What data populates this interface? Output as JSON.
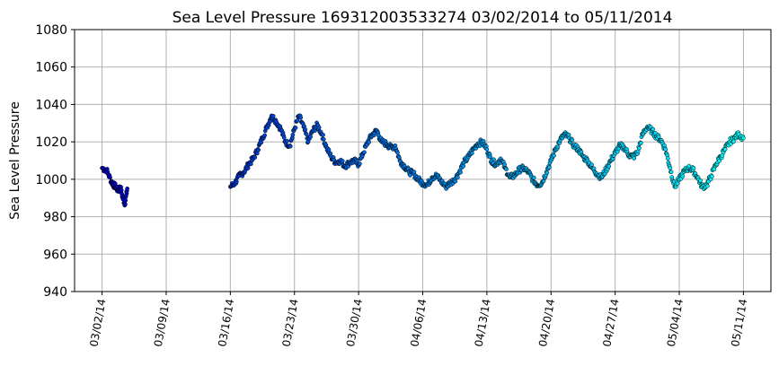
{
  "chart_data": {
    "type": "scatter",
    "title": "Sea Level Pressure 169312003533274  03/02/2014 to 05/11/2014",
    "xlabel": "",
    "ylabel": "Sea Level Pressure",
    "ylim": [
      940,
      1080
    ],
    "xlim": [
      "2014-02-27",
      "2014-05-14"
    ],
    "grid": true,
    "marker_edge_color": "#000000",
    "color_start": "#0000cd",
    "color_end": "#00ffff",
    "y_ticks": [
      940,
      960,
      980,
      1000,
      1020,
      1040,
      1060,
      1080
    ],
    "x_ticks": [
      {
        "date": "2014-03-02",
        "label": "03/02/14"
      },
      {
        "date": "2014-03-09",
        "label": "03/09/14"
      },
      {
        "date": "2014-03-16",
        "label": "03/16/14"
      },
      {
        "date": "2014-03-23",
        "label": "03/23/14"
      },
      {
        "date": "2014-03-30",
        "label": "03/30/14"
      },
      {
        "date": "2014-04-06",
        "label": "04/06/14"
      },
      {
        "date": "2014-04-13",
        "label": "04/13/14"
      },
      {
        "date": "2014-04-20",
        "label": "04/20/14"
      },
      {
        "date": "2014-04-27",
        "label": "04/27/14"
      },
      {
        "date": "2014-05-04",
        "label": "05/04/14"
      },
      {
        "date": "2014-05-11",
        "label": "05/11/14"
      }
    ],
    "series": [
      {
        "points": [
          [
            "2014-03-02",
            1006
          ],
          [
            "2014-03-02 12:00",
            1005
          ],
          [
            "2014-03-03",
            999
          ],
          [
            "2014-03-03 06:00",
            997
          ],
          [
            "2014-03-03 12:00",
            996
          ],
          [
            "2014-03-03 18:00",
            994
          ],
          [
            "2014-03-04",
            996
          ],
          [
            "2014-03-04 06:00",
            990
          ],
          [
            "2014-03-04 12:00",
            987
          ],
          [
            "2014-03-04 18:00",
            995
          ],
          [
            "2014-03-16",
            996
          ],
          [
            "2014-03-16 12:00",
            998
          ],
          [
            "2014-03-17",
            1002
          ],
          [
            "2014-03-17 12:00",
            1004
          ],
          [
            "2014-03-18",
            1008
          ],
          [
            "2014-03-18 12:00",
            1011
          ],
          [
            "2014-03-19",
            1016
          ],
          [
            "2014-03-19 12:00",
            1022
          ],
          [
            "2014-03-20",
            1028
          ],
          [
            "2014-03-20 12:00",
            1034
          ],
          [
            "2014-03-21",
            1031
          ],
          [
            "2014-03-21 12:00",
            1027
          ],
          [
            "2014-03-22",
            1020
          ],
          [
            "2014-03-22 12:00",
            1018
          ],
          [
            "2014-03-23",
            1027
          ],
          [
            "2014-03-23 12:00",
            1034
          ],
          [
            "2014-03-24",
            1028
          ],
          [
            "2014-03-24 12:00",
            1020
          ],
          [
            "2014-03-25",
            1026
          ],
          [
            "2014-03-25 12:00",
            1029
          ],
          [
            "2014-03-26",
            1024
          ],
          [
            "2014-03-26 12:00",
            1017
          ],
          [
            "2014-03-27",
            1012
          ],
          [
            "2014-03-27 12:00",
            1009
          ],
          [
            "2014-03-28",
            1010
          ],
          [
            "2014-03-28 12:00",
            1007
          ],
          [
            "2014-03-29",
            1009
          ],
          [
            "2014-03-29 12:00",
            1010
          ],
          [
            "2014-03-30",
            1008
          ],
          [
            "2014-03-30 12:00",
            1014
          ],
          [
            "2014-03-31",
            1020
          ],
          [
            "2014-03-31 12:00",
            1024
          ],
          [
            "2014-04-01",
            1026
          ],
          [
            "2014-04-01 12:00",
            1020
          ],
          [
            "2014-04-02",
            1019
          ],
          [
            "2014-04-02 12:00",
            1017
          ],
          [
            "2014-04-03",
            1018
          ],
          [
            "2014-04-03 12:00",
            1010
          ],
          [
            "2014-04-04",
            1007
          ],
          [
            "2014-04-04 12:00",
            1004
          ],
          [
            "2014-04-05",
            1003
          ],
          [
            "2014-04-05 12:00",
            1000
          ],
          [
            "2014-04-06",
            998
          ],
          [
            "2014-04-06 12:00",
            997
          ],
          [
            "2014-04-07",
            1001
          ],
          [
            "2014-04-07 12:00",
            1002
          ],
          [
            "2014-04-08",
            999
          ],
          [
            "2014-04-08 12:00",
            996
          ],
          [
            "2014-04-09",
            998
          ],
          [
            "2014-04-09 12:00",
            1000
          ],
          [
            "2014-04-10",
            1004
          ],
          [
            "2014-04-10 12:00",
            1009
          ],
          [
            "2014-04-11",
            1012
          ],
          [
            "2014-04-11 12:00",
            1016
          ],
          [
            "2014-04-12",
            1019
          ],
          [
            "2014-04-12 12:00",
            1020
          ],
          [
            "2014-04-13",
            1016
          ],
          [
            "2014-04-13 12:00",
            1010
          ],
          [
            "2014-04-14",
            1008
          ],
          [
            "2014-04-14 12:00",
            1011
          ],
          [
            "2014-04-15",
            1006
          ],
          [
            "2014-04-15 12:00",
            1001
          ],
          [
            "2014-04-16",
            1002
          ],
          [
            "2014-04-16 12:00",
            1005
          ],
          [
            "2014-04-17",
            1006
          ],
          [
            "2014-04-17 12:00",
            1004
          ],
          [
            "2014-04-18",
            1000
          ],
          [
            "2014-04-18 12:00",
            997
          ],
          [
            "2014-04-19",
            998
          ],
          [
            "2014-04-19 12:00",
            1004
          ],
          [
            "2014-04-20",
            1010
          ],
          [
            "2014-04-20 12:00",
            1016
          ],
          [
            "2014-04-21",
            1021
          ],
          [
            "2014-04-21 12:00",
            1024
          ],
          [
            "2014-04-22",
            1022
          ],
          [
            "2014-04-22 12:00",
            1018
          ],
          [
            "2014-04-23",
            1016
          ],
          [
            "2014-04-23 12:00",
            1012
          ],
          [
            "2014-04-24",
            1010
          ],
          [
            "2014-04-24 12:00",
            1006
          ],
          [
            "2014-04-25",
            1003
          ],
          [
            "2014-04-25 12:00",
            1001
          ],
          [
            "2014-04-26",
            1005
          ],
          [
            "2014-04-26 12:00",
            1010
          ],
          [
            "2014-04-27",
            1014
          ],
          [
            "2014-04-27 12:00",
            1018
          ],
          [
            "2014-04-28",
            1017
          ],
          [
            "2014-04-28 12:00",
            1013
          ],
          [
            "2014-04-29",
            1012
          ],
          [
            "2014-04-29 12:00",
            1015
          ],
          [
            "2014-04-30",
            1024
          ],
          [
            "2014-04-30 12:00",
            1028
          ],
          [
            "2014-05-01",
            1026
          ],
          [
            "2014-05-01 12:00",
            1023
          ],
          [
            "2014-05-02",
            1021
          ],
          [
            "2014-05-02 12:00",
            1016
          ],
          [
            "2014-05-03",
            1006
          ],
          [
            "2014-05-03 12:00",
            996
          ],
          [
            "2014-05-04",
            1000
          ],
          [
            "2014-05-04 12:00",
            1004
          ],
          [
            "2014-05-05",
            1006
          ],
          [
            "2014-05-05 12:00",
            1005
          ],
          [
            "2014-05-06",
            1001
          ],
          [
            "2014-05-06 12:00",
            996
          ],
          [
            "2014-05-07",
            997
          ],
          [
            "2014-05-07 12:00",
            1002
          ],
          [
            "2014-05-08",
            1008
          ],
          [
            "2014-05-08 12:00",
            1012
          ],
          [
            "2014-05-09",
            1016
          ],
          [
            "2014-05-09 12:00",
            1020
          ],
          [
            "2014-05-10",
            1022
          ],
          [
            "2014-05-10 12:00",
            1024
          ],
          [
            "2014-05-11",
            1022
          ]
        ]
      }
    ]
  }
}
